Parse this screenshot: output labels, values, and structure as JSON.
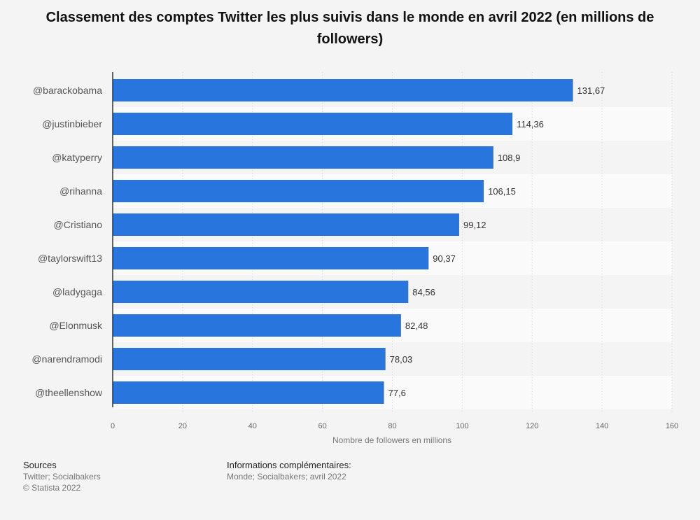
{
  "chart_data": {
    "type": "bar",
    "orientation": "horizontal",
    "title": "Classement des comptes Twitter les plus suivis dans le monde en avril 2022 (en millions de followers)",
    "categories": [
      "@barackobama",
      "@justinbieber",
      "@katyperry",
      "@rihanna",
      "@Cristiano",
      "@taylorswift13",
      "@ladygaga",
      "@Elonmusk",
      "@narendramodi",
      "@theellenshow"
    ],
    "values": [
      131.67,
      114.36,
      108.9,
      106.15,
      99.12,
      90.37,
      84.56,
      82.48,
      78.03,
      77.6
    ],
    "value_labels": [
      "131,67",
      "114,36",
      "108,9",
      "106,15",
      "99,12",
      "90,37",
      "84,56",
      "82,48",
      "78,03",
      "77,6"
    ],
    "xlabel": "Nombre de followers en millions",
    "ylabel": "",
    "xlim": [
      0,
      160
    ],
    "xticks": [
      0,
      20,
      40,
      60,
      80,
      100,
      120,
      140,
      160
    ],
    "grid": true,
    "bar_color": "#2876dd"
  },
  "footer": {
    "sources_heading": "Sources",
    "sources_line1": "Twitter; Socialbakers",
    "sources_line2": "© Statista 2022",
    "info_heading": "Informations complémentaires:",
    "info_line1": "Monde; Socialbakers; avril 2022"
  }
}
